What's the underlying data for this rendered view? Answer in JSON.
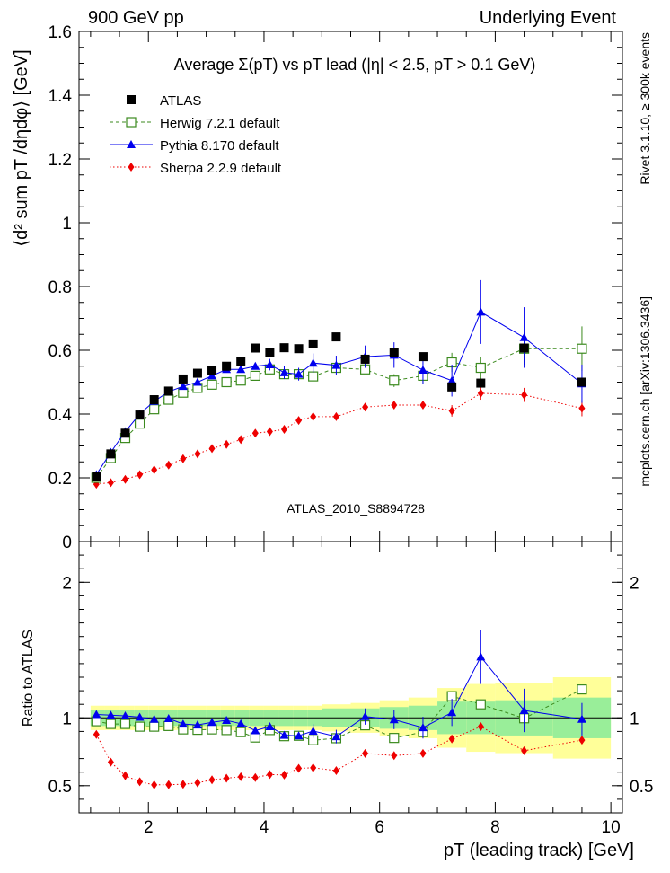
{
  "header": {
    "left": "900 GeV pp",
    "right": "Underlying Event"
  },
  "side_labels": {
    "right_top": "Rivet 3.1.10, ≥ 300k events",
    "right_bottom": "mcplots.cern.ch [arXiv:1306.3436]"
  },
  "watermark": "ATLAS_2010_S8894728",
  "colors": {
    "atlas": "#000000",
    "herwig": "#3b8a1e",
    "pythia": "#0000ee",
    "sherpa": "#ee0000",
    "band_inner": "#99ee99",
    "band_outer": "#ffff99"
  },
  "chart_data": [
    {
      "type": "scatter",
      "title": "Average Σ(pT) vs pT lead (|η| < 2.5, pT > 0.1 GeV)",
      "ylabel": "⟨d² sum pT /dηdφ⟩ [GeV]",
      "xlabel": "",
      "xlim": [
        0.8,
        10.2
      ],
      "ylim": [
        0,
        1.6
      ],
      "yticks": [
        "0",
        "0.2",
        "0.4",
        "0.6",
        "0.8",
        "1",
        "1.2",
        "1.4",
        "1.6"
      ],
      "legend_position": "top-left",
      "x": [
        1.1,
        1.35,
        1.6,
        1.85,
        2.1,
        2.35,
        2.6,
        2.85,
        3.1,
        3.35,
        3.6,
        3.85,
        4.1,
        4.35,
        4.6,
        4.85,
        5.25,
        5.75,
        6.25,
        6.75,
        7.25,
        7.75,
        8.5,
        9.5
      ],
      "series": [
        {
          "name": "ATLAS",
          "values": [
            0.205,
            0.275,
            0.34,
            0.397,
            0.445,
            0.472,
            0.51,
            0.528,
            0.538,
            0.55,
            0.565,
            0.607,
            0.593,
            0.608,
            0.605,
            0.62,
            0.642,
            0.572,
            0.593,
            0.58,
            0.485,
            0.497,
            0.607,
            0.5
          ],
          "errors": [
            0.005,
            0.005,
            0.005,
            0.005,
            0.005,
            0.005,
            0.005,
            0.005,
            0.005,
            0.005,
            0.005,
            0.005,
            0.005,
            0.005,
            0.005,
            0.005,
            0.005,
            0.01,
            0.01,
            0.01,
            0.015,
            0.015,
            0.015,
            0.015
          ]
        },
        {
          "name": "Herwig 7.2.1 default",
          "values": [
            0.2,
            0.262,
            0.325,
            0.37,
            0.415,
            0.445,
            0.467,
            0.482,
            0.492,
            0.5,
            0.505,
            0.52,
            0.54,
            0.525,
            0.525,
            0.518,
            0.545,
            0.54,
            0.505,
            0.52,
            0.562,
            0.545,
            0.605,
            0.605
          ],
          "errors": [
            0.005,
            0.005,
            0.005,
            0.005,
            0.005,
            0.005,
            0.005,
            0.005,
            0.005,
            0.006,
            0.006,
            0.006,
            0.007,
            0.007,
            0.008,
            0.01,
            0.012,
            0.015,
            0.02,
            0.025,
            0.03,
            0.035,
            0.05,
            0.07
          ]
        },
        {
          "name": "Pythia 8.170 default",
          "values": [
            0.21,
            0.28,
            0.345,
            0.4,
            0.44,
            0.47,
            0.487,
            0.5,
            0.52,
            0.54,
            0.54,
            0.55,
            0.555,
            0.53,
            0.525,
            0.56,
            0.553,
            0.58,
            0.585,
            0.538,
            0.505,
            0.72,
            0.64,
            0.495
          ],
          "errors": [
            0.005,
            0.005,
            0.005,
            0.005,
            0.006,
            0.006,
            0.007,
            0.008,
            0.009,
            0.01,
            0.012,
            0.015,
            0.018,
            0.02,
            0.02,
            0.03,
            0.03,
            0.035,
            0.04,
            0.045,
            0.05,
            0.1,
            0.095,
            0.06
          ]
        },
        {
          "name": "Sherpa 2.2.9 default",
          "values": [
            0.18,
            0.185,
            0.195,
            0.21,
            0.225,
            0.24,
            0.26,
            0.275,
            0.292,
            0.305,
            0.32,
            0.34,
            0.345,
            0.352,
            0.38,
            0.392,
            0.392,
            0.422,
            0.428,
            0.428,
            0.41,
            0.465,
            0.46,
            0.418
          ],
          "errors": [
            0.004,
            0.004,
            0.004,
            0.004,
            0.004,
            0.004,
            0.005,
            0.005,
            0.005,
            0.005,
            0.006,
            0.006,
            0.007,
            0.007,
            0.008,
            0.008,
            0.01,
            0.012,
            0.014,
            0.016,
            0.018,
            0.02,
            0.022,
            0.025
          ]
        }
      ]
    },
    {
      "type": "scatter",
      "title": "",
      "ylabel": "Ratio to ATLAS",
      "xlabel": "pT (leading track) [GeV]",
      "xlim": [
        0.8,
        10.2
      ],
      "ylim": [
        0.3,
        2.3
      ],
      "yticks": [
        "0.5",
        "1",
        "2"
      ],
      "xticks": [
        "2",
        "4",
        "6",
        "8",
        "10"
      ],
      "x_edges": [
        1.0,
        1.25,
        1.5,
        1.75,
        2.0,
        2.25,
        2.5,
        2.75,
        3.0,
        3.25,
        3.5,
        3.75,
        4.0,
        4.25,
        4.5,
        4.75,
        5.0,
        5.5,
        6.0,
        6.5,
        7.0,
        7.5,
        8.0,
        9.0,
        10.0
      ],
      "band_inner_halfwidth": [
        0.06,
        0.06,
        0.06,
        0.06,
        0.06,
        0.06,
        0.06,
        0.06,
        0.06,
        0.06,
        0.06,
        0.06,
        0.06,
        0.06,
        0.06,
        0.06,
        0.07,
        0.07,
        0.08,
        0.09,
        0.12,
        0.12,
        0.13,
        0.15
      ],
      "band_outer_halfwidth": [
        0.09,
        0.09,
        0.09,
        0.09,
        0.09,
        0.09,
        0.09,
        0.09,
        0.09,
        0.09,
        0.09,
        0.09,
        0.09,
        0.09,
        0.09,
        0.09,
        0.1,
        0.11,
        0.13,
        0.15,
        0.22,
        0.25,
        0.26,
        0.3
      ],
      "series": [
        {
          "name": "Herwig 7.2.1 default",
          "values": [
            0.975,
            0.955,
            0.955,
            0.935,
            0.935,
            0.94,
            0.915,
            0.912,
            0.915,
            0.91,
            0.895,
            0.855,
            0.91,
            0.865,
            0.868,
            0.835,
            0.85,
            0.945,
            0.852,
            0.895,
            1.16,
            1.1,
            0.997,
            1.21
          ]
        },
        {
          "name": "Pythia 8.170 default",
          "values": [
            1.025,
            1.02,
            1.015,
            1.005,
            0.99,
            0.995,
            0.955,
            0.948,
            0.967,
            0.982,
            0.957,
            0.906,
            0.936,
            0.872,
            0.868,
            0.903,
            0.862,
            1.01,
            0.987,
            0.928,
            1.04,
            1.45,
            1.055,
            0.99
          ],
          "errors": [
            0.02,
            0.02,
            0.02,
            0.02,
            0.02,
            0.02,
            0.02,
            0.02,
            0.02,
            0.02,
            0.02,
            0.03,
            0.03,
            0.03,
            0.03,
            0.05,
            0.05,
            0.06,
            0.07,
            0.08,
            0.1,
            0.2,
            0.16,
            0.12
          ]
        },
        {
          "name": "Sherpa 2.2.9 default",
          "values": [
            0.878,
            0.673,
            0.574,
            0.529,
            0.506,
            0.508,
            0.51,
            0.521,
            0.543,
            0.555,
            0.566,
            0.56,
            0.582,
            0.579,
            0.628,
            0.632,
            0.611,
            0.738,
            0.722,
            0.738,
            0.845,
            0.936,
            0.758,
            0.836
          ]
        }
      ]
    }
  ]
}
